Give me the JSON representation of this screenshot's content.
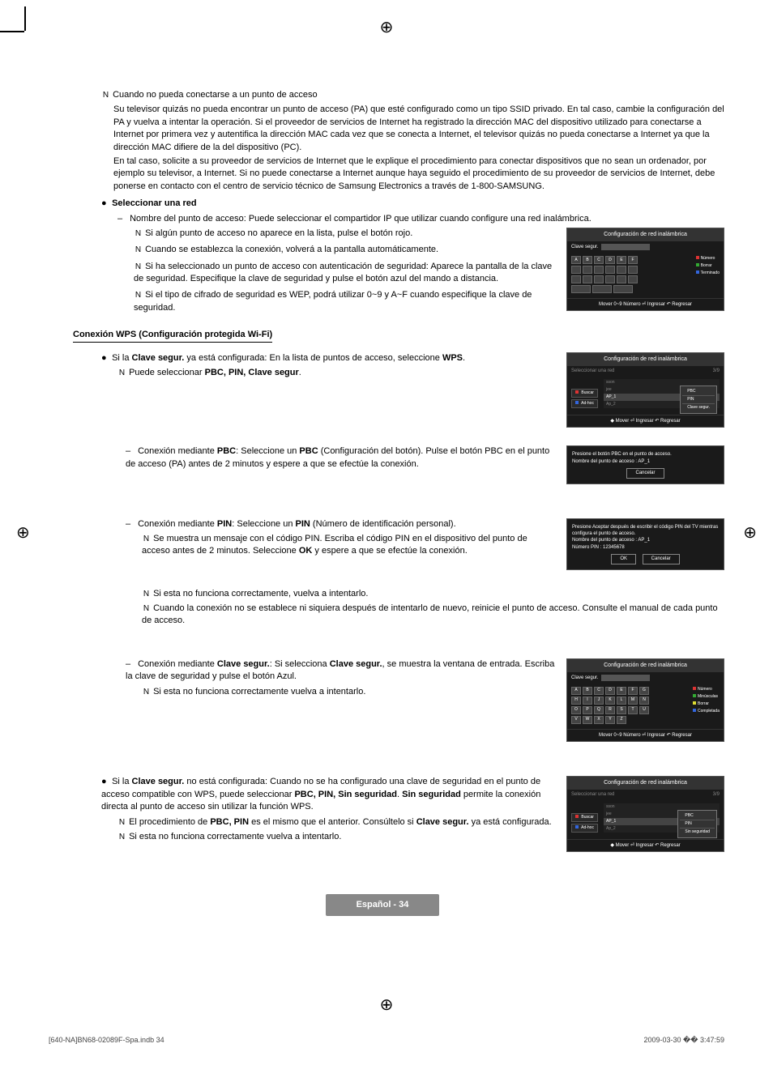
{
  "registration_symbol": "⊕",
  "intro": {
    "note_icon": "N",
    "heading": "Cuando no pueda conectarse a un punto de acceso",
    "para1": "Su televisor quizás no pueda encontrar un punto de acceso (PA) que esté configurado como un tipo SSID privado. En tal caso, cambie la configuración del PA y vuelva a intentar la operación. Si el proveedor de servicios de Internet ha registrado la dirección MAC del dispositivo utilizado para conectarse a Internet por primera vez y autentifica la dirección MAC cada vez que se conecta a Internet, el televisor quizás no pueda conectarse a Internet ya que la dirección MAC difiere de la del dispositivo (PC).",
    "para2": "En tal caso, solicite a su proveedor de servicios de Internet que le explique el procedimiento para conectar dispositivos que no sean un ordenador, por ejemplo su televisor, a Internet. Si no puede conectarse a Internet aunque haya seguido el procedimiento de su proveedor de servicios de Internet, debe ponerse en contacto con el centro de servicio técnico de Samsung Electronics a través de 1-800-SAMSUNG."
  },
  "select_net": {
    "bullet": "●",
    "heading": "Seleccionar una red",
    "dash": "–",
    "first_line": "Nombre del punto de acceso: Puede seleccionar el compartidor IP que utilizar cuando configure una red inalámbrica.",
    "notes": [
      "Si algún punto de acceso no aparece en la lista, pulse el botón rojo.",
      "Cuando se establezca la conexión, volverá a la pantalla automáticamente.",
      "Si ha seleccionado un punto de acceso con autenticación de seguridad: Aparece la pantalla de la clave de seguridad. Especifique la clave de seguridad y pulse el botón azul del mando a distancia.",
      "Si el tipo de cifrado de seguridad es WEP, podrá utilizar 0~9 y A~F cuando especifique la clave de seguridad."
    ]
  },
  "wps": {
    "heading": "Conexión WPS (Configuración protegida Wi-Fi)",
    "line1_pre": "Si la ",
    "line1_bold1": "Clave segur.",
    "line1_mid": " ya está configurada: En la lista de puntos de acceso, seleccione ",
    "line1_bold2": "WPS",
    "note1_pre": "Puede seleccionar ",
    "note1_bold": "PBC, PIN, Clave segur",
    "pbc_pre": "Conexión mediante ",
    "pbc_bold1": "PBC",
    "pbc_mid": ": Seleccione un ",
    "pbc_bold2": "PBC",
    "pbc_post": " (Configuración del botón). Pulse el botón PBC en el punto de acceso (PA) antes de 2 minutos y espere a que se efectúe la conexión.",
    "pin_bold1": "PIN",
    "pin_mid": ": Seleccione un ",
    "pin_bold2": "PIN",
    "pin_post": " (Número de identificación personal).",
    "pin_note1_pre": "Se muestra un mensaje con el código PIN. Escriba el código PIN en el dispositivo del punto de acceso antes de 2 minutos. Seleccione ",
    "pin_note1_bold": "OK",
    "pin_note1_post": " y espere a que se efectúe la conexión.",
    "pin_note2": "Si esta no funciona correctamente, vuelva a intentarlo.",
    "pin_note3": "Cuando la conexión no se establece ni siquiera después de intentarlo de nuevo, reinicie el punto de acceso. Consulte el manual de cada punto de acceso.",
    "clave_pre": "Conexión mediante ",
    "clave_bold1": "Clave segur.",
    "clave_mid": ": Si selecciona ",
    "clave_bold2": "Clave segur.",
    "clave_post": ", se muestra la ventana de entrada. Escriba la clave de seguridad y pulse el botón Azul.",
    "clave_note": "Si esta no funciona correctamente vuelva a intentarlo.",
    "nosec_pre": "Si la ",
    "nosec_bold1": "Clave segur.",
    "nosec_mid": " no está configurada: Cuando no se ha configurado una clave de seguridad en el punto de acceso compatible con WPS, puede seleccionar ",
    "nosec_bold2": "PBC, PIN, Sin seguridad",
    "nosec_mid2": ". ",
    "nosec_bold3": "Sin seguridad",
    "nosec_post": " permite la conexión directa al punto de acceso sin utilizar la función WPS.",
    "nosec_note1_pre": "El procedimiento de ",
    "nosec_note1_bold": "PBC, PIN",
    "nosec_note1_mid": " es el mismo que el anterior. Consúltelo si ",
    "nosec_note1_bold2": "Clave segur.",
    "nosec_note1_post": " ya está configurada.",
    "nosec_note2": "Si esta no funciona correctamente vuelva a intentarlo."
  },
  "tv1": {
    "title": "Configuración de red inalámbrica",
    "clave_label": "Clave segur.",
    "keys": [
      "A",
      "B",
      "C",
      "D",
      "E",
      "F"
    ],
    "hints": [
      "Número",
      "Borrar",
      "Terminado"
    ],
    "footer": "Mover    0~9 Número    ⏎ Ingresar    ↶ Regresar"
  },
  "tv2": {
    "title": "Configuración de red inalámbrica",
    "sel_label": "Seleccionar una red",
    "count": "3/9",
    "items": [
      "sson",
      "jee",
      "AP_1",
      "Ap_2"
    ],
    "buscar": "Buscar",
    "adhoc": "Ad-hoc",
    "popup": [
      "PBC",
      "PIN",
      "Clave segur."
    ],
    "footer": "◆ Mover    ⏎ Ingresar    ↶ Regresar"
  },
  "tv3": {
    "msg": "Presione el botón PBC  en el punto de acceso.",
    "msg2": "Nombre del punto de acceso : AP_1",
    "btn": "Cancelar"
  },
  "tv4": {
    "msg": "Presione Aceptar después de escribir el código PIN del TV mientras configura el punto de acceso.",
    "msg2": "Nombre del punto de acceso : AP_1",
    "msg3": "Número PIN : 12345678",
    "btn1": "OK",
    "btn2": "Cancelar"
  },
  "tv5": {
    "title": "Configuración de red inalámbrica",
    "clave_label": "Clave segur.",
    "rows": [
      [
        "A",
        "B",
        "C",
        "D",
        "E",
        "F",
        "G"
      ],
      [
        "H",
        "I",
        "J",
        "K",
        "L",
        "M",
        "N"
      ],
      [
        "O",
        "P",
        "Q",
        "R",
        "S",
        "T",
        "U"
      ],
      [
        "V",
        "W",
        "X",
        "Y",
        "Z"
      ]
    ],
    "hints": [
      "Número",
      "Minúsculas",
      "Borrar",
      "Completada"
    ],
    "footer": "Mover    0~9 Número    ⏎ Ingresar    ↶ Regresar"
  },
  "tv6": {
    "title": "Configuración de red inalámbrica",
    "sel_label": "Seleccionar una red",
    "count": "3/9",
    "items": [
      "sson",
      "jee",
      "AP_1",
      "Ap_2"
    ],
    "buscar": "Buscar",
    "adhoc": "Ad-hoc",
    "popup": [
      "PBC",
      "PIN",
      "Sin seguridad"
    ],
    "footer": "◆ Mover    ⏎ Ingresar    ↶ Regresar"
  },
  "page_label": "Español - 34",
  "print_left": "[640-NA]BN68-02089F-Spa.indb   34",
  "print_right": "2009-03-30   �� 3:47:59"
}
